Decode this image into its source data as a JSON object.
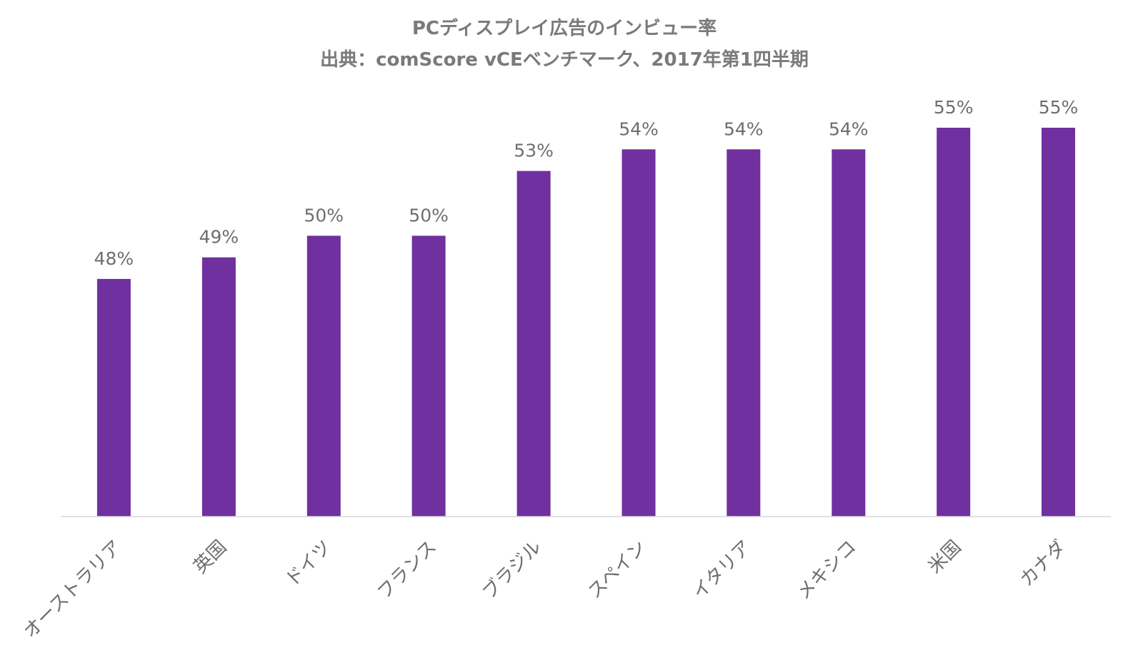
{
  "chart_data": {
    "type": "bar",
    "title": "PCディスプレイ広告のインビュー率",
    "subtitle": "出典：comScore vCEベンチマーク、2017年第1四半期",
    "categories": [
      "オーストラリア",
      "英国",
      "ドイツ",
      "フランス",
      "ブラジル",
      "スペイン",
      "イタリア",
      "メキシコ",
      "米国",
      "カナダ"
    ],
    "values": [
      48,
      49,
      50,
      50,
      53,
      54,
      54,
      54,
      55,
      55
    ],
    "value_labels": [
      "48%",
      "49%",
      "50%",
      "50%",
      "53%",
      "54%",
      "54%",
      "54%",
      "55%",
      "55%"
    ],
    "value_unit": "%",
    "ylim": [
      37,
      55
    ],
    "grid": false,
    "legend": "none",
    "bar_color": "#7030a0"
  }
}
